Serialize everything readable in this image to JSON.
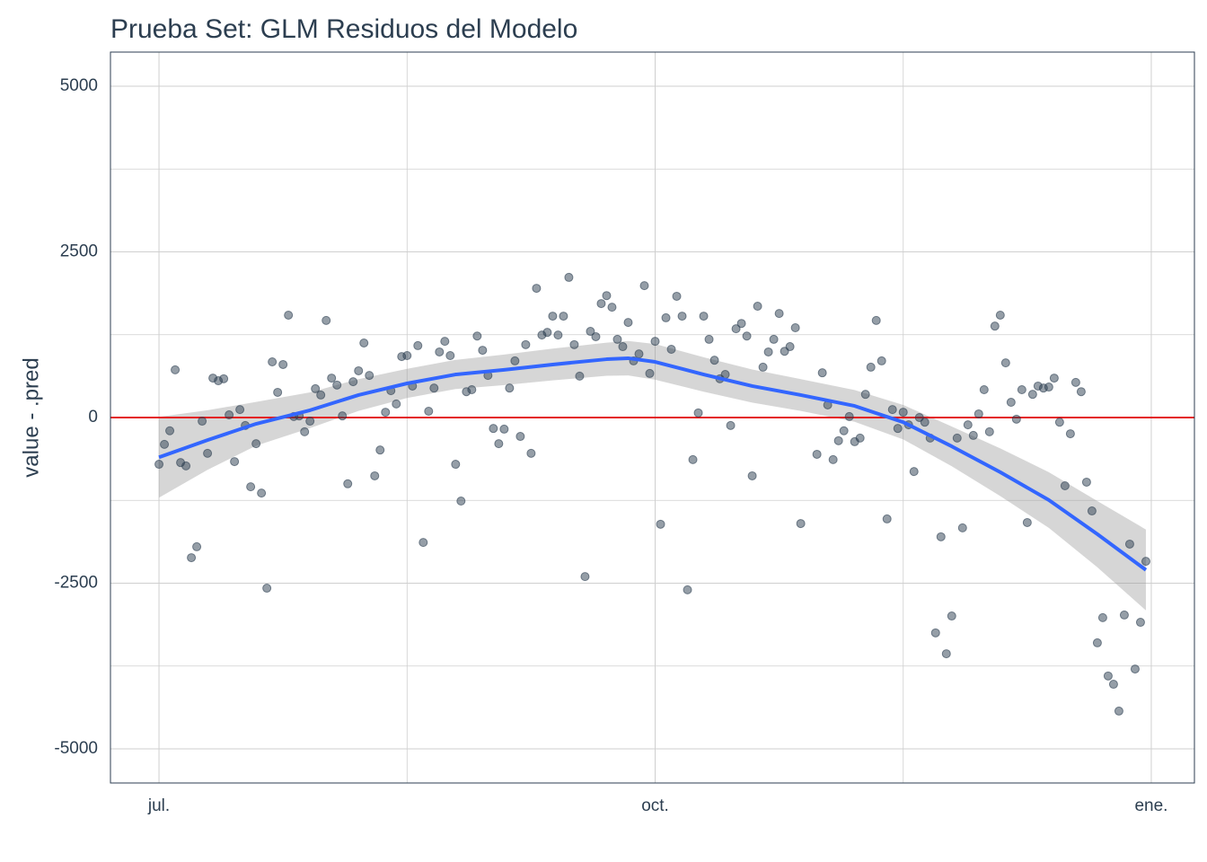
{
  "chart_data": {
    "type": "scatter",
    "title": "Prueba Set: GLM Residuos del Modelo",
    "y_label": "value - .pred",
    "xlim": [
      -9,
      192
    ],
    "xticks": [
      {
        "value": 0,
        "label": "jul."
      },
      {
        "value": 92,
        "label": "oct."
      },
      {
        "value": 184,
        "label": "ene."
      }
    ],
    "x_minor_ticks": [
      46,
      138
    ],
    "ylim": [
      -5515,
      5515
    ],
    "yticks": [
      -5000,
      -2500,
      0,
      2500,
      5000
    ],
    "y_minor_ticks": [
      -3750,
      -1250,
      1250,
      3750
    ],
    "grid": true,
    "points": {
      "color": "#2c3e50",
      "x": [
        0,
        1,
        2,
        3,
        4,
        5,
        6,
        7,
        8,
        9,
        10,
        11,
        12,
        13,
        14,
        15,
        16,
        17,
        18,
        19,
        20,
        21,
        22,
        23,
        24,
        25,
        26,
        27,
        28,
        29,
        30,
        31,
        32,
        33,
        34,
        35,
        36,
        37,
        38,
        39,
        40,
        41,
        42,
        43,
        44,
        45,
        46,
        47,
        48,
        49,
        50,
        51,
        52,
        53,
        54,
        55,
        56,
        57,
        58,
        59,
        60,
        61,
        62,
        63,
        64,
        65,
        66,
        67,
        68,
        69,
        70,
        71,
        72,
        73,
        74,
        75,
        76,
        77,
        78,
        79,
        80,
        81,
        82,
        83,
        84,
        85,
        86,
        87,
        88,
        89,
        90,
        91,
        92,
        93,
        94,
        95,
        96,
        97,
        98,
        99,
        100,
        101,
        102,
        103,
        104,
        105,
        106,
        107,
        108,
        109,
        110,
        111,
        112,
        113,
        114,
        115,
        116,
        117,
        118,
        119,
        122,
        123,
        124,
        125,
        126,
        127,
        128,
        129,
        130,
        131,
        132,
        133,
        134,
        135,
        136,
        137,
        138,
        139,
        140,
        141,
        142,
        143,
        144,
        145,
        146,
        147,
        148,
        149,
        150,
        151,
        152,
        153,
        154,
        155,
        156,
        157,
        158,
        159,
        160,
        161,
        162,
        163,
        164,
        165,
        166,
        167,
        168,
        169,
        170,
        171,
        172,
        173,
        174,
        175,
        176,
        177,
        178,
        179,
        180,
        181,
        182,
        183
      ],
      "values": [
        -705,
        -405,
        -200,
        720,
        -680,
        -730,
        -2115,
        -1950,
        -55,
        -540,
        595,
        555,
        585,
        40,
        -665,
        120,
        -120,
        -1045,
        -395,
        -1140,
        -2575,
        840,
        380,
        800,
        1545,
        15,
        25,
        -215,
        -55,
        435,
        340,
        1465,
        595,
        490,
        25,
        -1000,
        540,
        705,
        1125,
        635,
        -880,
        -490,
        80,
        405,
        205,
        920,
        935,
        475,
        1085,
        -1885,
        95,
        445,
        990,
        1150,
        935,
        -705,
        -1260,
        390,
        420,
        1230,
        1015,
        635,
        -165,
        -395,
        -175,
        445,
        855,
        -285,
        1100,
        -540,
        1950,
        1245,
        1285,
        1530,
        1245,
        1530,
        2115,
        1100,
        625,
        -2400,
        1300,
        1220,
        1720,
        1840,
        1665,
        1180,
        1070,
        1435,
        855,
        960,
        1990,
        665,
        1150,
        -1610,
        1505,
        1030,
        1830,
        1530,
        -2600,
        -635,
        70,
        1530,
        1180,
        865,
        585,
        650,
        -120,
        1340,
        1420,
        1230,
        -880,
        1680,
        760,
        990,
        1180,
        1570,
        1000,
        1070,
        1355,
        -1600,
        -555,
        675,
        190,
        -635,
        -350,
        -200,
        15,
        -365,
        -310,
        350,
        760,
        1465,
        855,
        -1530,
        120,
        -165,
        80,
        -110,
        -815,
        0,
        -70,
        -310,
        -3250,
        -1800,
        -3565,
        -2995,
        -310,
        -1665,
        -110,
        -270,
        55,
        420,
        -215,
        1380,
        1545,
        825,
        230,
        -25,
        420,
        -1585,
        350,
        475,
        445,
        460,
        595,
        -70,
        -1030,
        -245,
        530,
        390,
        -975,
        -1410,
        -3400,
        -3020,
        -3900,
        -4025,
        -4430,
        -2980,
        -1910,
        -3795,
        -3090,
        -2170
      ]
    },
    "smooth": {
      "color": "#3366ff",
      "band_color": "#999999",
      "x": [
        0,
        9,
        18,
        28,
        37,
        46,
        55,
        64,
        73,
        83,
        87,
        92,
        101,
        110,
        119,
        129,
        138,
        147,
        156,
        165,
        174,
        183
      ],
      "values": [
        -600,
        -340,
        -95,
        110,
        340,
        515,
        650,
        720,
        800,
        880,
        895,
        840,
        650,
        475,
        340,
        175,
        -70,
        -435,
        -825,
        -1245,
        -1760,
        -2300
      ],
      "lower": [
        -1210,
        -790,
        -425,
        -160,
        100,
        295,
        430,
        490,
        560,
        630,
        635,
        570,
        390,
        225,
        100,
        -65,
        -330,
        -735,
        -1185,
        -1665,
        -2260,
        -2910
      ],
      "upper": [
        10,
        110,
        235,
        380,
        580,
        735,
        870,
        950,
        1040,
        1130,
        1155,
        1110,
        910,
        725,
        580,
        415,
        190,
        -135,
        -465,
        -825,
        -1260,
        -1690
      ]
    },
    "hline": {
      "value": 0,
      "color": "#e41a1c"
    }
  }
}
